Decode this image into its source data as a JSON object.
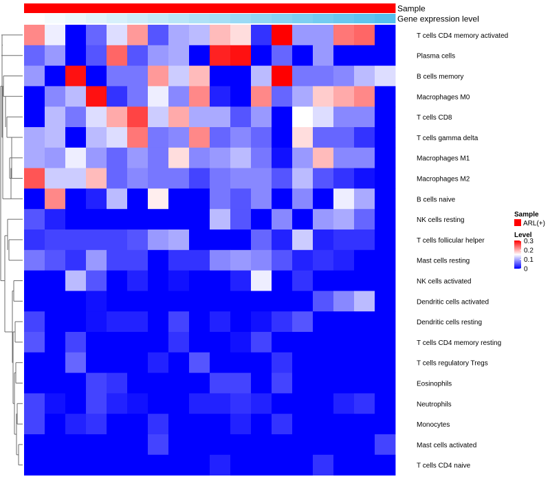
{
  "chart_data": {
    "type": "heatmap",
    "annotation_tracks": [
      {
        "name": "Sample",
        "color": "#ff0000"
      },
      {
        "name": "Gene expression level",
        "gradient": [
          "#ffffff",
          "#55c0ee"
        ]
      }
    ],
    "rows": [
      "T cells CD4 memory activated",
      "Plasma cells",
      "B cells memory",
      "Macrophages M0",
      "T cells CD8",
      "T cells gamma delta",
      "Macrophages M1",
      "Macrophages M2",
      "B cells naive",
      "NK cells resting",
      "T cells follicular helper",
      "Mast cells resting",
      "NK cells activated",
      "Dendritic cells activated",
      "Dendritic cells resting",
      "T cells CD4 memory resting",
      "T cells regulatory  Tregs",
      "Eosinophils",
      "Neutrophils",
      "Monocytes",
      "Mast cells activated",
      "T cells CD4 naive"
    ],
    "n_columns": 18,
    "values": [
      [
        0.22,
        0.14,
        0.0,
        0.06,
        0.13,
        0.21,
        0.05,
        0.1,
        0.11,
        0.19,
        0.17,
        0.03,
        0.3,
        0.09,
        0.09,
        0.23,
        0.24,
        0.0
      ],
      [
        0.06,
        0.09,
        0.0,
        0.05,
        0.24,
        0.05,
        0.09,
        0.1,
        0.0,
        0.28,
        0.29,
        0.0,
        0.06,
        0.0,
        0.09,
        0.0,
        0.0,
        0.0
      ],
      [
        0.09,
        0.0,
        0.29,
        0.0,
        0.07,
        0.07,
        0.21,
        0.12,
        0.19,
        0.0,
        0.0,
        0.11,
        0.3,
        0.07,
        0.07,
        0.08,
        0.11,
        0.13
      ],
      [
        0.0,
        0.08,
        0.11,
        0.29,
        0.03,
        0.07,
        0.14,
        0.08,
        0.22,
        0.02,
        0.0,
        0.22,
        0.06,
        0.1,
        0.18,
        0.2,
        0.22,
        0.0
      ],
      [
        0.0,
        0.11,
        0.07,
        0.13,
        0.2,
        0.26,
        0.12,
        0.2,
        0.1,
        0.1,
        0.05,
        0.09,
        0.0,
        0.15,
        0.13,
        0.08,
        0.08,
        0.0
      ],
      [
        0.1,
        0.11,
        0.0,
        0.11,
        0.13,
        0.23,
        0.07,
        0.08,
        0.22,
        0.06,
        0.08,
        0.06,
        0.0,
        0.17,
        0.06,
        0.06,
        0.03,
        0.0
      ],
      [
        0.1,
        0.09,
        0.14,
        0.09,
        0.06,
        0.09,
        0.07,
        0.17,
        0.08,
        0.09,
        0.11,
        0.07,
        0.01,
        0.09,
        0.19,
        0.08,
        0.08,
        0.0
      ],
      [
        0.25,
        0.12,
        0.12,
        0.19,
        0.06,
        0.08,
        0.07,
        0.07,
        0.04,
        0.07,
        0.08,
        0.08,
        0.05,
        0.11,
        0.05,
        0.03,
        0.01,
        0.0
      ],
      [
        0.0,
        0.22,
        0.0,
        0.02,
        0.11,
        0.0,
        0.16,
        0.0,
        0.0,
        0.07,
        0.05,
        0.08,
        0.0,
        0.08,
        0.0,
        0.14,
        0.1,
        0.0
      ],
      [
        0.05,
        0.02,
        0.0,
        0.0,
        0.0,
        0.0,
        0.0,
        0.0,
        0.0,
        0.11,
        0.05,
        0.0,
        0.08,
        0.0,
        0.09,
        0.1,
        0.06,
        0.0
      ],
      [
        0.03,
        0.04,
        0.04,
        0.04,
        0.04,
        0.05,
        0.09,
        0.1,
        0.0,
        0.0,
        0.0,
        0.06,
        0.02,
        0.12,
        0.02,
        0.03,
        0.03,
        0.0
      ],
      [
        0.07,
        0.05,
        0.03,
        0.09,
        0.04,
        0.04,
        0.0,
        0.03,
        0.03,
        0.08,
        0.09,
        0.08,
        0.05,
        0.02,
        0.03,
        0.02,
        0.0,
        0.0
      ],
      [
        0.0,
        0.0,
        0.11,
        0.05,
        0.0,
        0.02,
        0.0,
        0.01,
        0.0,
        0.0,
        0.02,
        0.14,
        0.0,
        0.03,
        0.0,
        0.0,
        0.0,
        0.0
      ],
      [
        0.0,
        0.0,
        0.0,
        0.01,
        0.0,
        0.0,
        0.0,
        0.0,
        0.0,
        0.0,
        0.0,
        0.0,
        0.0,
        0.0,
        0.05,
        0.08,
        0.11,
        0.0
      ],
      [
        0.04,
        0.0,
        0.0,
        0.01,
        0.02,
        0.02,
        0.0,
        0.04,
        0.0,
        0.02,
        0.0,
        0.01,
        0.03,
        0.05,
        0.0,
        0.0,
        0.0,
        0.0
      ],
      [
        0.05,
        0.0,
        0.04,
        0.0,
        0.0,
        0.0,
        0.0,
        0.03,
        0.0,
        0.0,
        0.01,
        0.04,
        0.0,
        0.0,
        0.0,
        0.0,
        0.0,
        0.0
      ],
      [
        0.0,
        0.0,
        0.06,
        0.0,
        0.0,
        0.0,
        0.02,
        0.0,
        0.05,
        0.0,
        0.0,
        0.0,
        0.03,
        0.0,
        0.0,
        0.0,
        0.0,
        0.0
      ],
      [
        0.0,
        0.0,
        0.0,
        0.04,
        0.03,
        0.0,
        0.0,
        0.0,
        0.0,
        0.04,
        0.04,
        0.0,
        0.04,
        0.0,
        0.0,
        0.0,
        0.0,
        0.0
      ],
      [
        0.04,
        0.01,
        0.0,
        0.04,
        0.02,
        0.01,
        0.0,
        0.0,
        0.02,
        0.02,
        0.03,
        0.02,
        0.0,
        0.0,
        0.0,
        0.02,
        0.03,
        0.0
      ],
      [
        0.04,
        0.0,
        0.02,
        0.03,
        0.0,
        0.0,
        0.03,
        0.0,
        0.0,
        0.0,
        0.02,
        0.0,
        0.03,
        0.0,
        0.0,
        0.0,
        0.0,
        0.0
      ],
      [
        0.0,
        0.0,
        0.0,
        0.0,
        0.0,
        0.0,
        0.04,
        0.0,
        0.0,
        0.0,
        0.0,
        0.0,
        0.0,
        0.0,
        0.0,
        0.0,
        0.0,
        0.04
      ],
      [
        0.0,
        0.0,
        0.0,
        0.0,
        0.0,
        0.0,
        0.0,
        0.0,
        0.0,
        0.02,
        0.0,
        0.0,
        0.0,
        0.0,
        0.03,
        0.0,
        0.0,
        0.0
      ]
    ],
    "color_scale": {
      "low": "#0000ff",
      "mid": "#ffffff",
      "high": "#ff0000",
      "min": 0,
      "mid_value": 0.15,
      "max": 0.3
    },
    "legend": {
      "sample_title": "Sample",
      "sample_entry": "ARL(+)",
      "sample_color": "#ff0000",
      "level_title": "Level",
      "level_ticks": [
        "0.3",
        "0.2",
        "0.1",
        "0"
      ],
      "position": "right"
    },
    "row_dendrogram": true
  }
}
